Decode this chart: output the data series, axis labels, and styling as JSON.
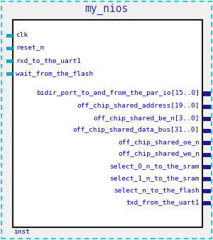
{
  "title": "my_nios",
  "inst_label": "inst",
  "bg_color": "#f0f0f0",
  "outer_border_color": "#00c8c8",
  "inner_border_color": "#1a1a1a",
  "title_color": "#3333aa",
  "text_color": "#0000bb",
  "inst_color": "#0000bb",
  "pin_color_left": "#00aacc",
  "pin_color_right": "#1a1a99",
  "left_pins": [
    "clk",
    "reset_n",
    "rxd_to_the_uart1",
    "wait_from_the_flash"
  ],
  "bidir_pins": [
    "bidir_port_to_and_from_the_par_io[15..0]"
  ],
  "right_pins": [
    "off_chip_shared_address[19..0]",
    "off_chip_shared_be_n[3..0]",
    "off_chip_shared_data_bus[31..0]",
    "off_chip_shared_oe_n",
    "off_chip_shared_we_n",
    "select_0_n_to_the_sram",
    "select_1_n_to_the_sram",
    "select_n_to_the_flash",
    "txd_from_the_uart1"
  ],
  "font_size": 6.8,
  "title_font_size": 10.5
}
